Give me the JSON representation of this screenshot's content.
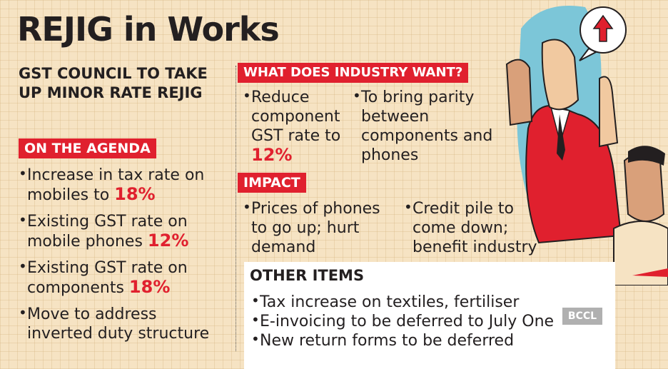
{
  "title": "REJIG in Works",
  "subtitle": "GST COUNCIL TO TAKE UP MINOR RATE REJIG",
  "agenda": {
    "heading": "ON THE AGENDA",
    "items": [
      {
        "text": "Increase in tax rate on mobiles to ",
        "highlight": "18%"
      },
      {
        "text": "Existing GST rate on mobile phones ",
        "highlight": "12%"
      },
      {
        "text": "Existing GST rate on components ",
        "highlight": "18%"
      },
      {
        "text": "Move to address inverted duty structure",
        "highlight": ""
      }
    ]
  },
  "industry": {
    "heading": "WHAT DOES INDUSTRY WANT?",
    "items": [
      {
        "text": "Reduce component GST rate to ",
        "highlight": "12%"
      },
      {
        "text": "To bring parity between components and phones",
        "highlight": ""
      }
    ]
  },
  "impact": {
    "heading": "IMPACT",
    "items": [
      {
        "text": "Prices of phones to go up; hurt demand"
      },
      {
        "text": "Credit pile to come down; benefit industry"
      }
    ]
  },
  "other_items": {
    "heading": "OTHER ITEMS",
    "items": [
      "Tax increase on textiles, fertiliser",
      "E-invoicing to be deferred to July One",
      "New return forms to be deferred"
    ]
  },
  "watermark": "BCCL",
  "colors": {
    "accent": "#e0202e",
    "background": "#f6e3c3",
    "text": "#231f20"
  },
  "illustration": "people-with-upward-arrow-speech-bubble"
}
